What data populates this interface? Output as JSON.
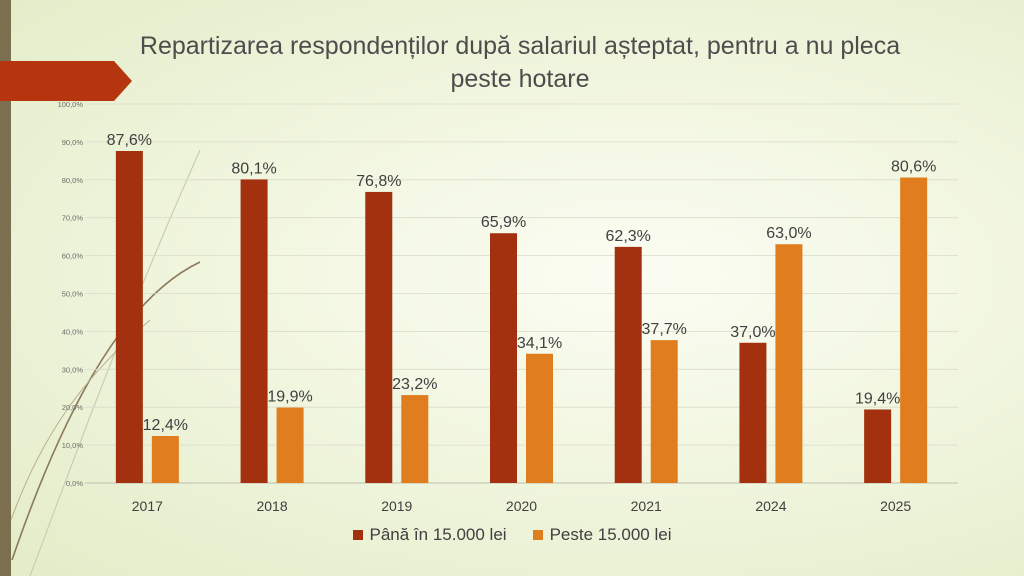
{
  "chart_data": {
    "type": "bar",
    "title": "Repartizarea respondenților după salariul așteptat, pentru a nu pleca peste hotare",
    "categories": [
      "2017",
      "2018",
      "2019",
      "2020",
      "2021",
      "2024",
      "2025"
    ],
    "series": [
      {
        "name": "Până în 15.000 lei",
        "color": "#a3300f",
        "values": [
          87.6,
          80.1,
          76.8,
          65.9,
          62.3,
          37.0,
          19.4
        ],
        "labels": [
          "87,6%",
          "80,1%",
          "76,8%",
          "65,9%",
          "62,3%",
          "37,0%",
          "19,4%"
        ]
      },
      {
        "name": "Peste 15.000 lei",
        "color": "#e07d1e",
        "values": [
          12.4,
          19.9,
          23.2,
          34.1,
          37.7,
          63.0,
          80.6
        ],
        "labels": [
          "12,4%",
          "19,9%",
          "23,2%",
          "34,1%",
          "37,7%",
          "63,0%",
          "80,6%"
        ]
      }
    ],
    "ylim": [
      0,
      100
    ],
    "yticks": [
      "0,0%",
      "10,0%",
      "20,0%",
      "30,0%",
      "40,0%",
      "50,0%",
      "60,0%",
      "70,0%",
      "80,0%",
      "90,0%",
      "100,0%"
    ],
    "grid": true,
    "legend_position": "bottom"
  }
}
